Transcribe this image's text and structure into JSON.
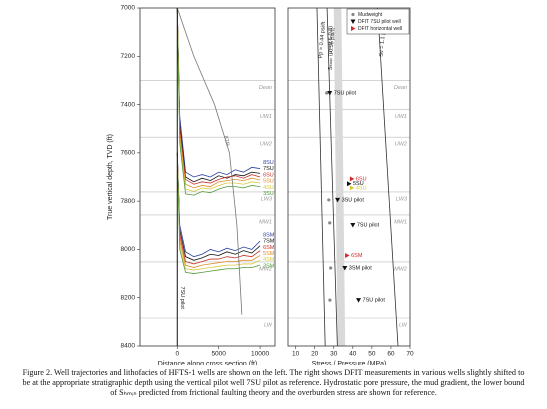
{
  "caption": "Figure 2. Well trajectories and lithofacies of HFTS-1 wells are shown on the left. The right shows DFIT measurements in various wells slightly shifted to be at the appropriate stratigraphic depth using the vertical pilot well 7SU pilot as reference. Hydrostatic pore pressure, the mud gradient, the lower bound of Sₕₘᵢₙ predicted from frictional faulting theory and the overburden stress are shown for reference.",
  "chart_data": [
    {
      "type": "line",
      "xlabel": "Distance along cross section (ft)",
      "ylabel": "True vertical depth, TVD (ft)",
      "xlim": [
        -4500,
        11800
      ],
      "xticks": [
        0,
        5000,
        10000
      ],
      "ylim": [
        7000,
        8400
      ],
      "yticks": [
        7000,
        7200,
        7400,
        7600,
        7800,
        8000,
        8200,
        8400
      ],
      "y_inverted": true,
      "formations": [
        {
          "name": "Dean",
          "depth": 7300
        },
        {
          "name": "UW1",
          "depth": 7420
        },
        {
          "name": "UW2",
          "depth": 7535
        },
        {
          "name": "LW3",
          "depth": 7762
        },
        {
          "name": "MW1",
          "depth": 7857
        },
        {
          "name": "MW2",
          "depth": 8052
        },
        {
          "name": "LW",
          "depth": 8284
        }
      ],
      "series": [
        {
          "name": "8SU",
          "color": "#2b3f9e",
          "x": [
            0,
            300,
            1000,
            2000,
            3000,
            4000,
            5000,
            6000,
            7000,
            8000,
            9000,
            10000
          ],
          "y": [
            7000,
            7450,
            7680,
            7700,
            7690,
            7700,
            7680,
            7690,
            7670,
            7680,
            7660,
            7665
          ]
        },
        {
          "name": "7SU",
          "color": "#111111",
          "x": [
            0,
            300,
            1000,
            2000,
            3000,
            4000,
            5000,
            6000,
            7000,
            8000,
            9000,
            10000
          ],
          "y": [
            7000,
            7480,
            7700,
            7720,
            7705,
            7715,
            7695,
            7705,
            7690,
            7695,
            7680,
            7685
          ]
        },
        {
          "name": "6SU",
          "color": "#c8322b",
          "x": [
            0,
            300,
            1000,
            2000,
            3000,
            4000,
            5000,
            6000,
            7000,
            8000,
            9000,
            10000
          ],
          "y": [
            7000,
            7500,
            7710,
            7730,
            7720,
            7725,
            7710,
            7700,
            7695,
            7705,
            7690,
            7700
          ]
        },
        {
          "name": "5SU",
          "color": "#e08a2c",
          "x": [
            0,
            300,
            1000,
            2000,
            3000,
            4000,
            5000,
            6000,
            7000,
            8000,
            9000,
            10000
          ],
          "y": [
            7000,
            7520,
            7730,
            7745,
            7735,
            7740,
            7720,
            7715,
            7710,
            7715,
            7705,
            7712
          ]
        },
        {
          "name": "4SU",
          "color": "#d8c83a",
          "x": [
            0,
            300,
            1000,
            2000,
            3000,
            4000,
            5000,
            6000,
            7000,
            8000,
            9000,
            10000
          ],
          "y": [
            7000,
            7540,
            7750,
            7760,
            7745,
            7750,
            7735,
            7725,
            7725,
            7730,
            7720,
            7725
          ]
        },
        {
          "name": "3SU",
          "color": "#4f9a3a",
          "x": [
            0,
            300,
            1000,
            2000,
            3000,
            4000,
            5000,
            6000,
            7000,
            8000,
            9000,
            10000
          ],
          "y": [
            7000,
            7560,
            7770,
            7775,
            7760,
            7765,
            7750,
            7740,
            7740,
            7745,
            7735,
            7740
          ]
        },
        {
          "name": "8SM",
          "color": "#2b3f9e",
          "x": [
            0,
            300,
            1000,
            2000,
            3000,
            4000,
            5000,
            6000,
            7000,
            8000,
            9000,
            10000
          ],
          "y": [
            7600,
            7900,
            8010,
            8030,
            8020,
            8000,
            8010,
            7995,
            8005,
            7990,
            8000,
            7965
          ]
        },
        {
          "name": "7SM",
          "color": "#111111",
          "x": [
            0,
            300,
            1000,
            2000,
            3000,
            4000,
            5000,
            6000,
            7000,
            8000,
            9000,
            10000
          ],
          "y": [
            7600,
            7920,
            8030,
            8045,
            8035,
            8020,
            8025,
            8010,
            8020,
            8005,
            8015,
            7985
          ]
        },
        {
          "name": "6SM",
          "color": "#c8322b",
          "x": [
            0,
            300,
            1000,
            2000,
            3000,
            4000,
            5000,
            6000,
            7000,
            8000,
            9000,
            10000
          ],
          "y": [
            7600,
            7940,
            8050,
            8060,
            8050,
            8040,
            8040,
            8030,
            8035,
            8025,
            8030,
            8005
          ]
        },
        {
          "name": "5SM",
          "color": "#e08a2c",
          "x": [
            0,
            300,
            1000,
            2000,
            3000,
            4000,
            5000,
            6000,
            7000,
            8000,
            9000,
            10000
          ],
          "y": [
            7600,
            7960,
            8065,
            8075,
            8065,
            8060,
            8055,
            8050,
            8050,
            8045,
            8045,
            8025
          ]
        },
        {
          "name": "4SM",
          "color": "#d8c83a",
          "x": [
            0,
            300,
            1000,
            2000,
            3000,
            4000,
            5000,
            6000,
            7000,
            8000,
            9000,
            10000
          ],
          "y": [
            7600,
            7980,
            8080,
            8085,
            8080,
            8075,
            8070,
            8065,
            8065,
            8060,
            8060,
            8045
          ]
        },
        {
          "name": "3SM",
          "color": "#4f9a3a",
          "x": [
            0,
            300,
            1000,
            2000,
            3000,
            4000,
            5000,
            6000,
            7000,
            8000,
            9000,
            10000
          ],
          "y": [
            7600,
            8000,
            8095,
            8100,
            8095,
            8090,
            8085,
            8080,
            8080,
            8075,
            8075,
            8065
          ]
        },
        {
          "name": "8TR",
          "color": "#777777",
          "x": [
            0,
            2000,
            4500,
            6300,
            7200,
            7800
          ],
          "y": [
            7000,
            7200,
            7400,
            7600,
            7900,
            8270
          ]
        },
        {
          "name": "7SU pilot",
          "color": "#111111",
          "x": [
            0,
            0
          ],
          "y": [
            7000,
            8400
          ]
        }
      ]
    },
    {
      "type": "scatter",
      "xlabel": "Stress / Pressure (MPa)",
      "xlim": [
        6,
        70
      ],
      "xticks": [
        10,
        20,
        30,
        40,
        50,
        60,
        70
      ],
      "ylim": [
        7000,
        8400
      ],
      "y_inverted": true,
      "legend": "top-right",
      "formations": [
        {
          "name": "Dean",
          "depth": 7300
        },
        {
          "name": "UW1",
          "depth": 7420
        },
        {
          "name": "UW2",
          "depth": 7535
        },
        {
          "name": "LW3",
          "depth": 7762
        },
        {
          "name": "MW1",
          "depth": 7857
        },
        {
          "name": "MW2",
          "depth": 8052
        },
        {
          "name": "LW",
          "depth": 8284
        }
      ],
      "band": {
        "name": "Sₕₘᵢₙ (μ = 0.6-0.8)",
        "color": "#d9d9d9",
        "x_low": [
          30,
          32
        ],
        "x_high": [
          34,
          36
        ],
        "y": [
          7000,
          8400
        ]
      },
      "lines": [
        {
          "name": "Pp = 0.44 psi/ft",
          "color": "#333333",
          "x": [
            21.2,
            25.5
          ],
          "y": [
            7000,
            8400
          ]
        },
        {
          "name": "0.55 psi/ft",
          "color": "#333333",
          "x": [
            26.5,
            31.9
          ],
          "y": [
            7000,
            8400
          ]
        },
        {
          "name": "Sv = 1.1 psi/ft",
          "color": "#333333",
          "x": [
            53,
            63.7
          ],
          "y": [
            7000,
            8400
          ]
        }
      ],
      "series": [
        {
          "name": "Mudweight",
          "marker": "circle",
          "color": "#888888",
          "x": [
            26.3,
            27.4,
            27.9,
            28.4,
            28
          ],
          "y": [
            7352,
            7795,
            7890,
            8077,
            8210
          ]
        },
        {
          "name": "DFIT 7SU pilot well",
          "marker": "triangle-down",
          "color": "#111111",
          "x": [
            27.9,
            32,
            40,
            35.8,
            43
          ],
          "y": [
            7352,
            7795,
            7899,
            8077,
            8210
          ],
          "point_labels": [
            "7SU pilot",
            "3SU pilot",
            "7SU pilot",
            "3SM pilot",
            "7SU pilot"
          ]
        },
        {
          "name": "DFIT horizontal well",
          "marker": "triangle-right",
          "color": "#d22b2b",
          "x": [
            39.5,
            38,
            39.5,
            37
          ],
          "y": [
            7708,
            7728,
            7745,
            8025
          ],
          "point_colors": [
            "#d22b2b",
            "#111111",
            "#d8c83a",
            "#d22b2b"
          ],
          "point_labels": [
            "6SU",
            "5SU",
            "4SU",
            "6SM"
          ]
        }
      ]
    }
  ]
}
